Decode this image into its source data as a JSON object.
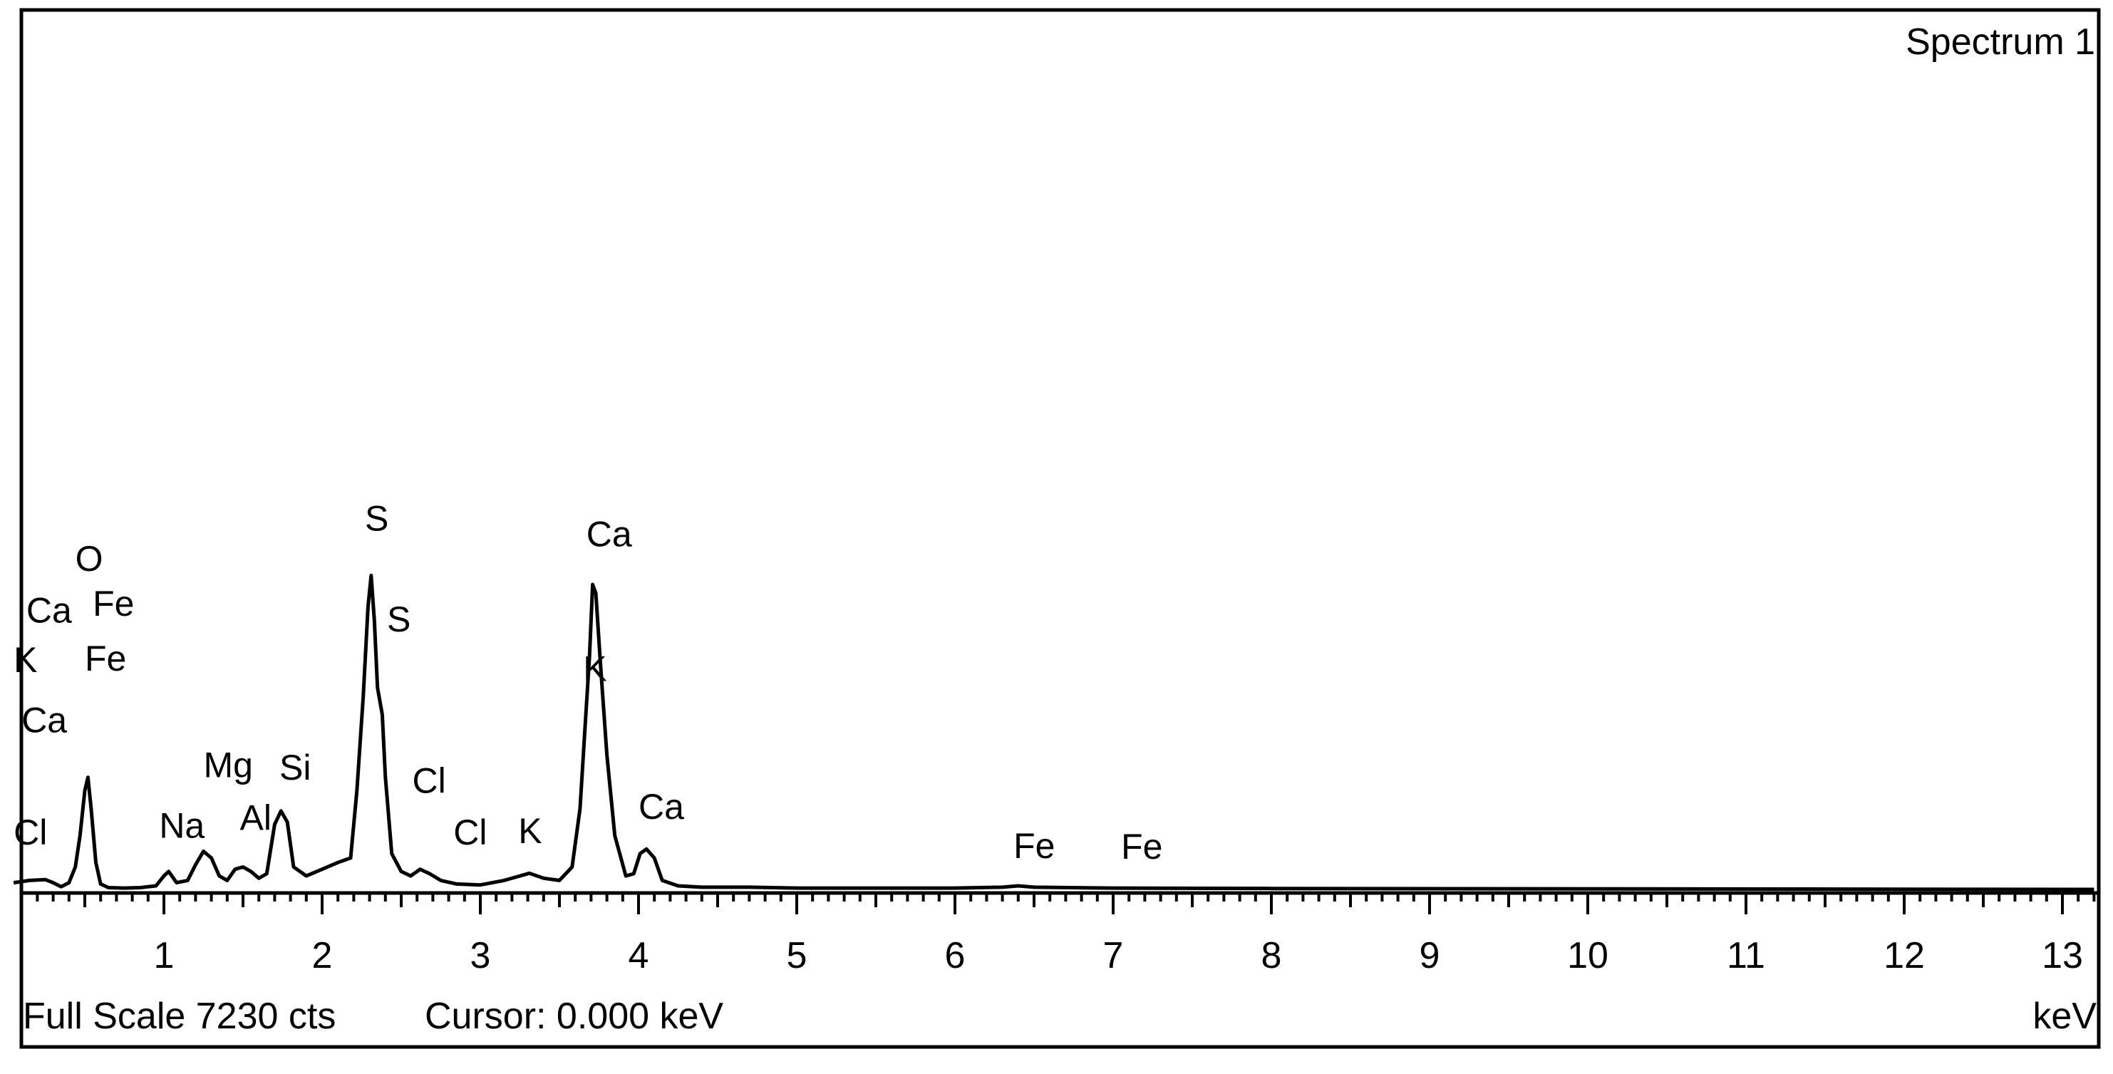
{
  "chart_data": {
    "type": "line",
    "title": "Spectrum 1",
    "xlabel": "keV",
    "ylabel": "",
    "xlim": [
      0.05,
      13.2
    ],
    "ylim": [
      0,
      7230
    ],
    "full_scale_text": "Full Scale 7230 cts",
    "cursor_text": "Cursor: 0.000 keV",
    "x_ticks": [
      1,
      2,
      3,
      4,
      5,
      6,
      7,
      8,
      9,
      10,
      11,
      12,
      13
    ],
    "x_tick_labels": [
      "1",
      "2",
      "3",
      "4",
      "5",
      "6",
      "7",
      "8",
      "9",
      "10",
      "11",
      "12",
      "13"
    ],
    "series": [
      {
        "x": [
          0.05,
          0.15,
          0.25,
          0.3,
          0.35,
          0.4,
          0.44,
          0.47,
          0.5,
          0.52,
          0.54,
          0.57,
          0.6,
          0.65,
          0.75,
          0.85,
          0.95,
          1.0,
          1.03,
          1.08,
          1.15,
          1.2,
          1.25,
          1.3,
          1.35,
          1.4,
          1.45,
          1.5,
          1.55,
          1.6,
          1.65,
          1.7,
          1.74,
          1.78,
          1.82,
          1.9,
          2.0,
          2.1,
          2.18,
          2.22,
          2.26,
          2.29,
          2.31,
          2.33,
          2.35,
          2.38,
          2.4,
          2.44,
          2.5,
          2.56,
          2.62,
          2.68,
          2.75,
          2.85,
          3.0,
          3.15,
          3.25,
          3.31,
          3.4,
          3.5,
          3.58,
          3.63,
          3.66,
          3.69,
          3.71,
          3.73,
          3.76,
          3.8,
          3.85,
          3.92,
          3.97,
          4.01,
          4.05,
          4.1,
          4.15,
          4.25,
          4.4,
          4.7,
          5.0,
          6.0,
          6.3,
          6.4,
          6.5,
          7.0,
          8.0,
          13.2
        ],
        "y": [
          150,
          200,
          220,
          150,
          60,
          150,
          500,
          1200,
          2200,
          2500,
          1800,
          600,
          120,
          40,
          30,
          40,
          80,
          300,
          400,
          150,
          200,
          550,
          850,
          700,
          300,
          200,
          450,
          500,
          400,
          250,
          350,
          1450,
          1750,
          1500,
          500,
          300,
          450,
          600,
          700,
          2200,
          4300,
          6300,
          7000,
          6000,
          4500,
          3900,
          2500,
          800,
          400,
          300,
          450,
          350,
          200,
          120,
          100,
          200,
          300,
          360,
          250,
          200,
          500,
          1800,
          3500,
          5200,
          6800,
          6600,
          5000,
          3000,
          1200,
          300,
          350,
          800,
          900,
          700,
          200,
          80,
          50,
          50,
          30,
          30,
          50,
          80,
          50,
          30,
          20,
          0
        ],
        "color": "#000000"
      }
    ],
    "peak_labels": [
      {
        "text": "O",
        "x": 0.44,
        "y": 7100
      },
      {
        "text": "Ca",
        "x": 0.13,
        "y": 5950
      },
      {
        "text": "Fe",
        "x": 0.55,
        "y": 6100
      },
      {
        "text": "K",
        "x": 0.05,
        "y": 4850
      },
      {
        "text": "Fe",
        "x": 0.5,
        "y": 4880
      },
      {
        "text": "Ca",
        "x": 0.1,
        "y": 3500
      },
      {
        "text": "Cl",
        "x": 0.05,
        "y": 1000
      },
      {
        "text": "Na",
        "x": 0.97,
        "y": 1150
      },
      {
        "text": "Mg",
        "x": 1.25,
        "y": 2500
      },
      {
        "text": "Al",
        "x": 1.48,
        "y": 1330
      },
      {
        "text": "Si",
        "x": 1.73,
        "y": 2450
      },
      {
        "text": "S",
        "x": 2.27,
        "y": 8000
      },
      {
        "text": "S",
        "x": 2.41,
        "y": 5750
      },
      {
        "text": "Cl",
        "x": 2.57,
        "y": 2150
      },
      {
        "text": "Cl",
        "x": 2.83,
        "y": 1000
      },
      {
        "text": "K",
        "x": 3.24,
        "y": 1030
      },
      {
        "text": "Ca",
        "x": 3.67,
        "y": 7650
      },
      {
        "text": "K",
        "x": 3.65,
        "y": 4650
      },
      {
        "text": "Ca",
        "x": 4.0,
        "y": 1570
      },
      {
        "text": "Fe",
        "x": 6.37,
        "y": 700
      },
      {
        "text": "Fe",
        "x": 7.05,
        "y": 680
      }
    ]
  }
}
